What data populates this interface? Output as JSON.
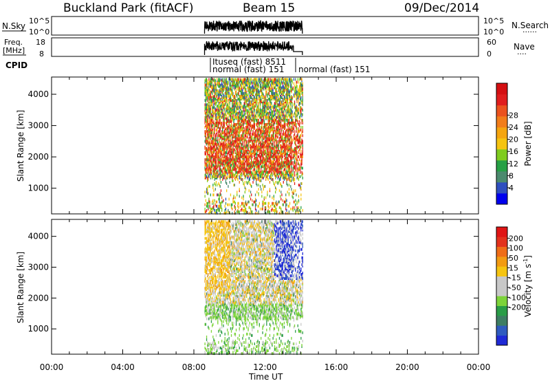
{
  "header": {
    "title": "Buckland Park (fitACF)",
    "beam": "Beam 15",
    "date": "09/Dec/2014"
  },
  "nsky_panel": {
    "left_label": "N.Sky",
    "left_ticks": [
      "10^5",
      "10^0"
    ],
    "right_ticks": [
      "10^5",
      "10^0"
    ],
    "right_label": "N.Search",
    "right_dots": "......"
  },
  "freq_panel": {
    "left_label_line1": "Freq.",
    "left_label_line2": "[MHz]",
    "left_ticks": [
      "18",
      "8"
    ],
    "right_ticks": [
      "60",
      "0"
    ],
    "right_label": "Nave",
    "right_dots": "...."
  },
  "cpid": {
    "label": "CPID",
    "entries": [
      "Ituseq (fast) 8511",
      "normal (fast) 151",
      "normal (fast) 151"
    ]
  },
  "chart_data": [
    {
      "type": "heatmap",
      "name": "power",
      "ylabel": "Slant Range [km]",
      "yticks": [
        "1000",
        "2000",
        "3000",
        "4000"
      ],
      "ylim": [
        180,
        4550
      ],
      "xlim": [
        0,
        24
      ],
      "data_time_range": [
        8.6,
        14.1
      ],
      "colorbar": {
        "label": "Power [dB]",
        "ticks": [
          "4",
          "8",
          "12",
          "16",
          "20",
          "24",
          "28"
        ],
        "colors": [
          "#0000ee",
          "#2f4fbf",
          "#4b8a6e",
          "#26a045",
          "#7fcc1f",
          "#f5c411",
          "#f5a50f",
          "#f27d1a",
          "#eb521e",
          "#e01d1d",
          "#d40f12"
        ]
      }
    },
    {
      "type": "heatmap",
      "name": "velocity",
      "ylabel": "Slant Range [km]",
      "yticks": [
        "1000",
        "2000",
        "3000",
        "4000"
      ],
      "ylim": [
        180,
        4550
      ],
      "xlim": [
        0,
        24
      ],
      "data_time_range": [
        8.6,
        14.1
      ],
      "colorbar": {
        "label": "Velocity [m s",
        "label_sup": "-1",
        "label_end": "]",
        "ticks": [
          "200",
          "100",
          "50",
          "15",
          "-15",
          "-50",
          "-100",
          "-200"
        ],
        "colors": [
          "#1f2ad6",
          "#2f5bbf",
          "#3d7d63",
          "#2a9d47",
          "#7dd43a",
          "#c8c8c8",
          "#c8c8c8",
          "#f5c411",
          "#f29b12",
          "#ef6d17",
          "#e3321c",
          "#e01515"
        ]
      }
    }
  ],
  "xaxis": {
    "ticks": [
      "00:00",
      "04:00",
      "08:00",
      "12:00",
      "16:00",
      "20:00",
      "00:00"
    ],
    "label": "Time UT"
  }
}
